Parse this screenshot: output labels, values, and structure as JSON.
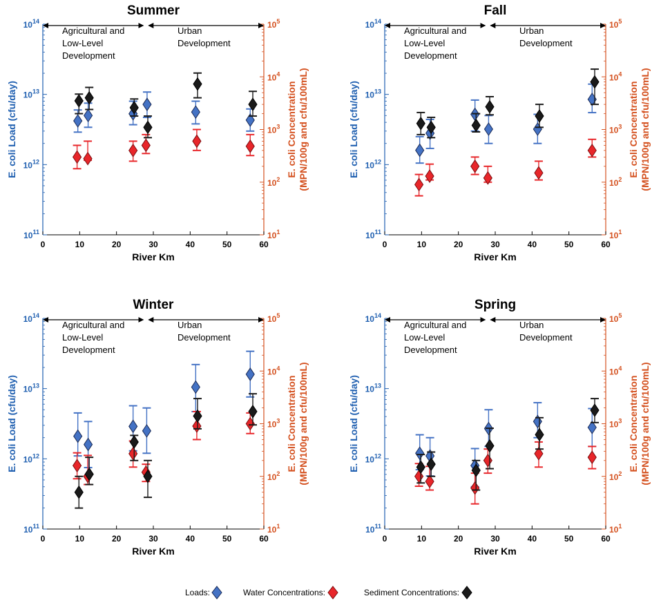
{
  "colors": {
    "loads": "#4472c4",
    "water": "#e8262a",
    "sediment": "#1a1a1a",
    "left_axis": "#1f5fb0",
    "right_axis": "#d4501e"
  },
  "legend": {
    "loads": "Loads:",
    "water": "Water Concentrations:",
    "sediment": "Sediment Concentrations:"
  },
  "chart_data": [
    {
      "type": "scatter",
      "title": "Summer",
      "xlabel": "River Km",
      "ylabel_left": "E. coli Load (cfu/day)",
      "ylabel_right": [
        "E. coli Concentration",
        "(MPN/100g and cfu/100mL)"
      ],
      "xlim": [
        0,
        60
      ],
      "xticks": [
        "0",
        "10",
        "20",
        "30",
        "40",
        "50",
        "60"
      ],
      "ylim_left": [
        100000000000.0,
        100000000000000.0
      ],
      "ylim_right": [
        10,
        100000
      ],
      "yticks_left": [
        "10",
        "10",
        "10",
        "10"
      ],
      "yticks_left_exp": [
        "11",
        "12",
        "13",
        "14"
      ],
      "yticks_right": [
        "10",
        "10",
        "10",
        "10",
        "10"
      ],
      "yticks_right_exp": [
        "1",
        "2",
        "3",
        "4",
        "5"
      ],
      "regions": [
        {
          "lines": [
            "Agricultural and",
            "Low-Level",
            "Development"
          ],
          "x_start": 0,
          "x_end": 28
        },
        {
          "lines": [
            "Urban",
            "Development"
          ],
          "x_start": 28,
          "x_end": 60
        }
      ],
      "series": [
        {
          "name": "Loads",
          "axis": "left",
          "marker": "diamond",
          "points": [
            {
              "x": 9.5,
              "y": 4200000000000.0,
              "lo": 2900000000000.0,
              "hi": 6000000000000.0
            },
            {
              "x": 12.3,
              "y": 5000000000000.0,
              "lo": 3400000000000.0,
              "hi": 7500000000000.0
            },
            {
              "x": 24.5,
              "y": 5300000000000.0,
              "lo": 3700000000000.0,
              "hi": 8000000000000.0
            },
            {
              "x": 28.3,
              "y": 7200000000000.0,
              "lo": 4700000000000.0,
              "hi": 10800000000000.0
            },
            {
              "x": 41.5,
              "y": 5600000000000.0,
              "lo": 3800000000000.0,
              "hi": 8000000000000.0
            },
            {
              "x": 56.3,
              "y": 4300000000000.0,
              "lo": 3000000000000.0,
              "hi": 6200000000000.0
            }
          ]
        },
        {
          "name": "Water Concentrations",
          "axis": "right",
          "marker": "diamond",
          "points": [
            {
              "x": 9.3,
              "y": 300,
              "lo": 180,
              "hi": 500
            },
            {
              "x": 12.2,
              "y": 280,
              "lo": 260,
              "hi": 600
            },
            {
              "x": 24.5,
              "y": 400,
              "lo": 250,
              "hi": 600
            },
            {
              "x": 28.0,
              "y": 500,
              "lo": 350,
              "hi": 800
            },
            {
              "x": 41.8,
              "y": 600,
              "lo": 400,
              "hi": 1000
            },
            {
              "x": 56.3,
              "y": 480,
              "lo": 320,
              "hi": 800
            }
          ]
        },
        {
          "name": "Sediment Concentrations",
          "axis": "right",
          "marker": "diamond",
          "points": [
            {
              "x": 9.8,
              "y": 3500,
              "lo": 2000,
              "hi": 4700
            },
            {
              "x": 12.6,
              "y": 4000,
              "lo": 2400,
              "hi": 6300
            },
            {
              "x": 24.8,
              "y": 2600,
              "lo": 1800,
              "hi": 3800
            },
            {
              "x": 28.5,
              "y": 1100,
              "lo": 700,
              "hi": 1800
            },
            {
              "x": 42.0,
              "y": 7300,
              "lo": 4000,
              "hi": 11800
            },
            {
              "x": 57.0,
              "y": 3000,
              "lo": 1800,
              "hi": 5300
            }
          ]
        }
      ]
    },
    {
      "type": "scatter",
      "title": "Fall",
      "xlabel": "River Km",
      "ylabel_left": "E. coli Load (cfu/day)",
      "ylabel_right": [
        "E. coli Concentration",
        "(MPN/100g and cfu/100mL)"
      ],
      "xlim": [
        0,
        60
      ],
      "xticks": [
        "0",
        "10",
        "20",
        "30",
        "40",
        "50",
        "60"
      ],
      "ylim_left": [
        100000000000.0,
        100000000000000.0
      ],
      "ylim_right": [
        10,
        100000
      ],
      "yticks_left": [
        "10",
        "10",
        "10",
        "10"
      ],
      "yticks_left_exp": [
        "11",
        "12",
        "13",
        "14"
      ],
      "yticks_right": [
        "10",
        "10",
        "10",
        "10",
        "10"
      ],
      "yticks_right_exp": [
        "1",
        "2",
        "3",
        "4",
        "5"
      ],
      "regions": [
        {
          "lines": [
            "Agricultural and",
            "Low-Level",
            "Development"
          ],
          "x_start": 0,
          "x_end": 28
        },
        {
          "lines": [
            "Urban",
            "Development"
          ],
          "x_start": 28,
          "x_end": 60
        }
      ],
      "series": [
        {
          "name": "Loads",
          "axis": "left",
          "marker": "diamond",
          "points": [
            {
              "x": 9.5,
              "y": 1600000000000.0,
              "lo": 1050000000000.0,
              "hi": 2500000000000.0
            },
            {
              "x": 12.3,
              "y": 2800000000000.0,
              "lo": 1700000000000.0,
              "hi": 4400000000000.0
            },
            {
              "x": 24.5,
              "y": 5200000000000.0,
              "lo": 3000000000000.0,
              "hi": 8300000000000.0
            },
            {
              "x": 28.2,
              "y": 3200000000000.0,
              "lo": 2000000000000.0,
              "hi": 5000000000000.0
            },
            {
              "x": 41.5,
              "y": 3200000000000.0,
              "lo": 2000000000000.0,
              "hi": 5200000000000.0
            },
            {
              "x": 56.3,
              "y": 8500000000000.0,
              "lo": 5500000000000.0,
              "hi": 14000000000000.0
            }
          ]
        },
        {
          "name": "Water Concentrations",
          "axis": "right",
          "marker": "diamond",
          "points": [
            {
              "x": 9.3,
              "y": 90,
              "lo": 55,
              "hi": 140
            },
            {
              "x": 12.2,
              "y": 130,
              "lo": 110,
              "hi": 220
            },
            {
              "x": 24.5,
              "y": 200,
              "lo": 140,
              "hi": 300
            },
            {
              "x": 28.0,
              "y": 120,
              "lo": 100,
              "hi": 200
            },
            {
              "x": 41.8,
              "y": 150,
              "lo": 110,
              "hi": 250
            },
            {
              "x": 56.3,
              "y": 400,
              "lo": 300,
              "hi": 650
            }
          ]
        },
        {
          "name": "Sediment Concentrations",
          "axis": "right",
          "marker": "diamond",
          "points": [
            {
              "x": 9.8,
              "y": 1300,
              "lo": 800,
              "hi": 2100
            },
            {
              "x": 12.6,
              "y": 1100,
              "lo": 700,
              "hi": 1700
            },
            {
              "x": 24.8,
              "y": 1200,
              "lo": 900,
              "hi": 2000
            },
            {
              "x": 28.5,
              "y": 2700,
              "lo": 1900,
              "hi": 4200
            },
            {
              "x": 42.0,
              "y": 1800,
              "lo": 1100,
              "hi": 3000
            },
            {
              "x": 57.0,
              "y": 8000,
              "lo": 3000,
              "hi": 14000
            }
          ]
        }
      ]
    },
    {
      "type": "scatter",
      "title": "Winter",
      "xlabel": "River Km",
      "ylabel_left": "E. coli Load (cfu/day)",
      "ylabel_right": [
        "E. coli Concentration",
        "(MPN/100g and cfu/100mL)"
      ],
      "xlim": [
        0,
        60
      ],
      "xticks": [
        "0",
        "10",
        "20",
        "30",
        "40",
        "50",
        "60"
      ],
      "ylim_left": [
        100000000000.0,
        100000000000000.0
      ],
      "ylim_right": [
        10,
        100000
      ],
      "yticks_left": [
        "10",
        "10",
        "10",
        "10"
      ],
      "yticks_left_exp": [
        "11",
        "12",
        "13",
        "14"
      ],
      "yticks_right": [
        "10",
        "10",
        "10",
        "10",
        "10"
      ],
      "yticks_right_exp": [
        "1",
        "2",
        "3",
        "4",
        "5"
      ],
      "regions": [
        {
          "lines": [
            "Agricultural and",
            "Low-Level",
            "Development"
          ],
          "x_start": 0,
          "x_end": 28
        },
        {
          "lines": [
            "Urban",
            "Development"
          ],
          "x_start": 28,
          "x_end": 60
        }
      ],
      "series": [
        {
          "name": "Loads",
          "axis": "left",
          "marker": "diamond",
          "points": [
            {
              "x": 9.5,
              "y": 2100000000000.0,
              "lo": 1100000000000.0,
              "hi": 4500000000000.0
            },
            {
              "x": 12.3,
              "y": 1600000000000.0,
              "lo": 750000000000.0,
              "hi": 3400000000000.0
            },
            {
              "x": 24.5,
              "y": 2900000000000.0,
              "lo": 1300000000000.0,
              "hi": 5700000000000.0
            },
            {
              "x": 28.2,
              "y": 2500000000000.0,
              "lo": 1200000000000.0,
              "hi": 5300000000000.0
            },
            {
              "x": 41.5,
              "y": 10500000000000.0,
              "lo": 4700000000000.0,
              "hi": 22000000000000.0
            },
            {
              "x": 56.3,
              "y": 16000000000000.0,
              "lo": 7600000000000.0,
              "hi": 34000000000000.0
            }
          ]
        },
        {
          "name": "Water Concentrations",
          "axis": "right",
          "marker": "diamond",
          "points": [
            {
              "x": 9.3,
              "y": 160,
              "lo": 90,
              "hi": 280
            },
            {
              "x": 12.2,
              "y": 100,
              "lo": 70,
              "hi": 250
            },
            {
              "x": 24.5,
              "y": 270,
              "lo": 150,
              "hi": 470
            },
            {
              "x": 28.0,
              "y": 120,
              "lo": 80,
              "hi": 170
            },
            {
              "x": 41.8,
              "y": 900,
              "lo": 500,
              "hi": 1700
            },
            {
              "x": 56.3,
              "y": 1000,
              "lo": 650,
              "hi": 1600
            }
          ]
        },
        {
          "name": "Sediment Concentrations",
          "axis": "right",
          "marker": "diamond",
          "points": [
            {
              "x": 9.8,
              "y": 50,
              "lo": 25,
              "hi": 100
            },
            {
              "x": 12.6,
              "y": 110,
              "lo": 70,
              "hi": 230
            },
            {
              "x": 24.8,
              "y": 450,
              "lo": 200,
              "hi": 600
            },
            {
              "x": 28.5,
              "y": 100,
              "lo": 40,
              "hi": 200
            },
            {
              "x": 42.0,
              "y": 1400,
              "lo": 800,
              "hi": 3000
            },
            {
              "x": 57.0,
              "y": 1700,
              "lo": 950,
              "hi": 3700
            }
          ]
        }
      ]
    },
    {
      "type": "scatter",
      "title": "Spring",
      "xlabel": "River Km",
      "ylabel_left": "E. coli Load (cfu/day)",
      "ylabel_right": [
        "E. coli Concentration",
        "(MPN/100g and cfu/100mL)"
      ],
      "xlim": [
        0,
        60
      ],
      "xticks": [
        "0",
        "10",
        "20",
        "30",
        "40",
        "50",
        "60"
      ],
      "ylim_left": [
        100000000000.0,
        100000000000000.0
      ],
      "ylim_right": [
        10,
        100000
      ],
      "yticks_left": [
        "10",
        "10",
        "10",
        "10"
      ],
      "yticks_left_exp": [
        "11",
        "12",
        "13",
        "14"
      ],
      "yticks_right": [
        "10",
        "10",
        "10",
        "10",
        "10"
      ],
      "yticks_right_exp": [
        "1",
        "2",
        "3",
        "4",
        "5"
      ],
      "regions": [
        {
          "lines": [
            "Agricultural and",
            "Low-Level",
            "Development"
          ],
          "x_start": 0,
          "x_end": 28
        },
        {
          "lines": [
            "Urban",
            "Development"
          ],
          "x_start": 28,
          "x_end": 60
        }
      ],
      "series": [
        {
          "name": "Loads",
          "axis": "left",
          "marker": "diamond",
          "points": [
            {
              "x": 9.5,
              "y": 1200000000000.0,
              "lo": 700000000000.0,
              "hi": 2200000000000.0
            },
            {
              "x": 12.3,
              "y": 1100000000000.0,
              "lo": 570000000000.0,
              "hi": 2000000000000.0
            },
            {
              "x": 24.5,
              "y": 800000000000.0,
              "lo": 400000000000.0,
              "hi": 1400000000000.0
            },
            {
              "x": 28.2,
              "y": 2700000000000.0,
              "lo": 1500000000000.0,
              "hi": 5000000000000.0
            },
            {
              "x": 41.5,
              "y": 3400000000000.0,
              "lo": 2000000000000.0,
              "hi": 6300000000000.0
            },
            {
              "x": 56.3,
              "y": 2800000000000.0,
              "lo": 1500000000000.0,
              "hi": 5200000000000.0
            }
          ]
        },
        {
          "name": "Water Concentrations",
          "axis": "right",
          "marker": "diamond",
          "points": [
            {
              "x": 9.3,
              "y": 100,
              "lo": 65,
              "hi": 175
            },
            {
              "x": 12.2,
              "y": 80,
              "lo": 55,
              "hi": 155
            },
            {
              "x": 24.5,
              "y": 60,
              "lo": 30,
              "hi": 115
            },
            {
              "x": 28.0,
              "y": 200,
              "lo": 115,
              "hi": 330
            },
            {
              "x": 41.8,
              "y": 270,
              "lo": 150,
              "hi": 450
            },
            {
              "x": 56.3,
              "y": 230,
              "lo": 140,
              "hi": 370
            }
          ]
        },
        {
          "name": "Sediment Concentrations",
          "axis": "right",
          "marker": "diamond",
          "points": [
            {
              "x": 9.8,
              "y": 150,
              "lo": 75,
              "hi": 260
            },
            {
              "x": 12.6,
              "y": 170,
              "lo": 100,
              "hi": 290
            },
            {
              "x": 24.8,
              "y": 130,
              "lo": 55,
              "hi": 200
            },
            {
              "x": 28.5,
              "y": 380,
              "lo": 140,
              "hi": 820
            },
            {
              "x": 42.0,
              "y": 620,
              "lo": 330,
              "hi": 1300
            },
            {
              "x": 57.0,
              "y": 1800,
              "lo": 1050,
              "hi": 3000
            }
          ]
        }
      ]
    }
  ]
}
